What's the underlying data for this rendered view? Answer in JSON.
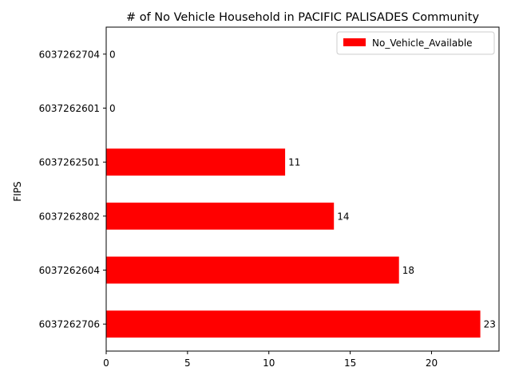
{
  "chart_data": {
    "type": "bar",
    "orientation": "horizontal",
    "title": "# of No Vehicle Household in PACIFIC PALISADES Community",
    "xlabel": "",
    "ylabel": "FIPS",
    "categories": [
      "6037262706",
      "6037262604",
      "6037262802",
      "6037262501",
      "6037262601",
      "6037262704"
    ],
    "series": [
      {
        "name": "No_Vehicle_Available",
        "values": [
          23,
          18,
          14,
          11,
          0,
          0
        ],
        "color": "#ff0000"
      }
    ],
    "data_labels": [
      "23",
      "18",
      "14",
      "11",
      "0",
      "0"
    ],
    "xlim": [
      0,
      24.15
    ],
    "xticks": [
      0,
      5,
      10,
      15,
      20
    ],
    "xtick_labels": [
      "0",
      "5",
      "10",
      "15",
      "20"
    ],
    "grid": false,
    "legend_position": "upper right"
  }
}
